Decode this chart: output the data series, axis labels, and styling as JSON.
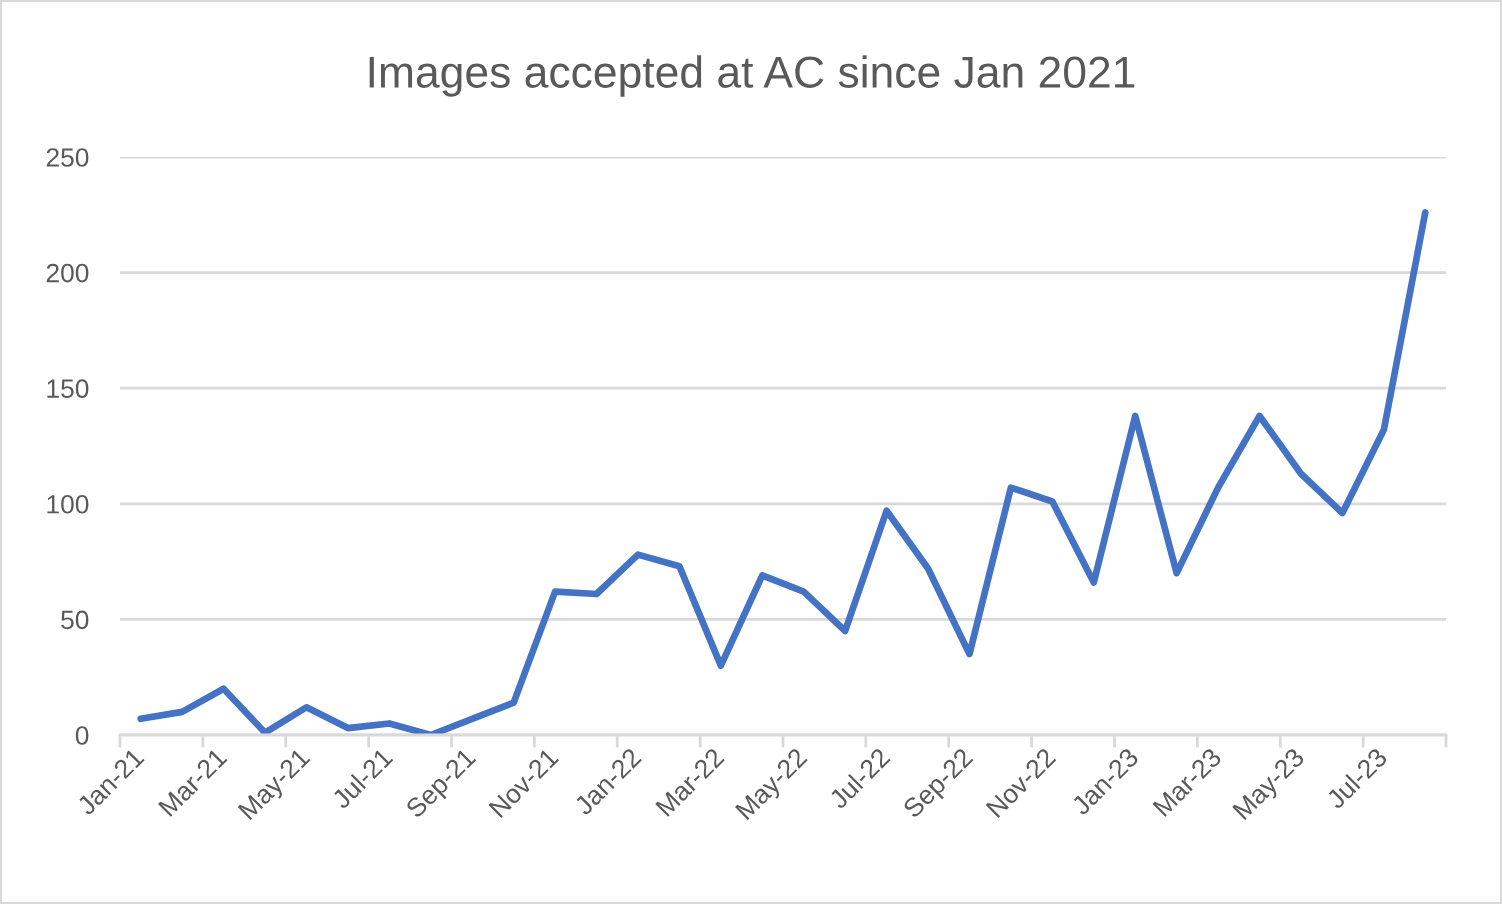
{
  "chart_data": {
    "type": "line",
    "title": "Images accepted at AC since Jan 2021",
    "categories": [
      "Jan-21",
      null,
      "Mar-21",
      null,
      "May-21",
      null,
      "Jul-21",
      null,
      "Sep-21",
      null,
      "Nov-21",
      null,
      "Jan-22",
      null,
      "Mar-22",
      null,
      "May-22",
      null,
      "Jul-22",
      null,
      "Sep-22",
      null,
      "Nov-22",
      null,
      "Jan-23",
      null,
      "Mar-23",
      null,
      "May-23",
      null,
      "Jul-23",
      null
    ],
    "series": [
      {
        "color": "#4472c4",
        "values": [
          7,
          10,
          20,
          1,
          12,
          3,
          5,
          0,
          7,
          14,
          62,
          61,
          78,
          73,
          30,
          69,
          62,
          45,
          97,
          72,
          35,
          107,
          101,
          66,
          138,
          70,
          107,
          138,
          113,
          96,
          132,
          226
        ]
      }
    ],
    "ylim": [
      0,
      250
    ],
    "yticks": [
      0,
      50,
      100,
      150,
      200,
      250
    ],
    "grid": "y",
    "line_style": "solid"
  }
}
